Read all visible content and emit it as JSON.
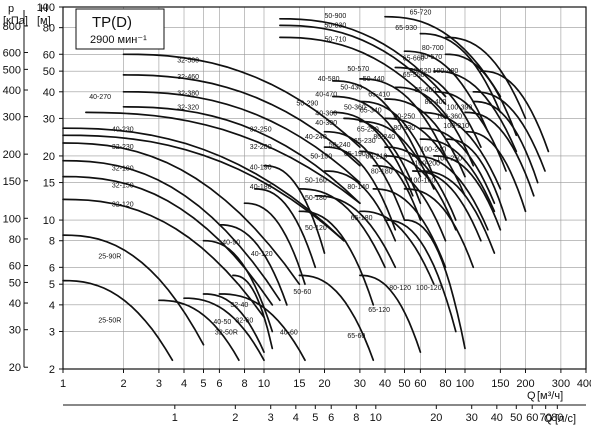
{
  "chart_data": {
    "type": "line",
    "title": "TP(D)",
    "subtitle": "2900 мин⁻¹",
    "axes": {
      "y_head": {
        "label": "H",
        "unit": "[м]",
        "scale": "log",
        "range": [
          2,
          100
        ],
        "ticks": [
          "2",
          "3",
          "4",
          "5",
          "6",
          "8",
          "10",
          "15",
          "20",
          "30",
          "40",
          "50",
          "60",
          "80",
          "100"
        ]
      },
      "y_pressure": {
        "label": "p",
        "unit": "[кПа]",
        "scale": "log",
        "range": [
          20,
          1000
        ],
        "ticks": [
          "20",
          "30",
          "40",
          "50",
          "60",
          "80",
          "100",
          "150",
          "200",
          "300",
          "400",
          "500",
          "600",
          "800"
        ]
      },
      "x_flow_m3h": {
        "label": "Q",
        "unit": "[м³/ч]",
        "scale": "log",
        "range": [
          1,
          400
        ],
        "ticks": [
          "1",
          "2",
          "3",
          "4",
          "5",
          "6",
          "8",
          "10",
          "15",
          "20",
          "30",
          "40",
          "50",
          "60",
          "80",
          "100",
          "150",
          "200",
          "300",
          "400"
        ]
      },
      "x_flow_ls": {
        "label": "Q",
        "unit": "[л/с]",
        "scale": "log",
        "ticks": [
          "1",
          "2",
          "3",
          "4",
          "5",
          "6",
          "8",
          "10",
          "20",
          "30",
          "40",
          "50",
          "60",
          "70",
          "80"
        ]
      }
    },
    "grid": true,
    "series": [
      {
        "name": "25-50R",
        "q": [
          1,
          3.5
        ],
        "h": [
          5.2,
          2.2
        ]
      },
      {
        "name": "25-90R",
        "q": [
          1,
          5
        ],
        "h": [
          8.5,
          2.6
        ]
      },
      {
        "name": "32-50R",
        "q": [
          3,
          7.5
        ],
        "h": [
          4.2,
          2.2
        ]
      },
      {
        "name": "32-120",
        "q": [
          1,
          10
        ],
        "h": [
          12.5,
          3.5
        ]
      },
      {
        "name": "32-150",
        "q": [
          1,
          11
        ],
        "h": [
          16,
          4
        ]
      },
      {
        "name": "32-180",
        "q": [
          1,
          12
        ],
        "h": [
          19,
          4.2
        ]
      },
      {
        "name": "32-230",
        "q": [
          1,
          15
        ],
        "h": [
          23,
          5
        ]
      },
      {
        "name": "40-50",
        "q": [
          4,
          10
        ],
        "h": [
          4.3,
          2.2
        ]
      },
      {
        "name": "40-90",
        "q": [
          5,
          11
        ],
        "h": [
          8,
          3
        ]
      },
      {
        "name": "40-120",
        "q": [
          6,
          13
        ],
        "h": [
          9.5,
          4
        ]
      },
      {
        "name": "40-60",
        "q": [
          6,
          16
        ],
        "h": [
          4.5,
          2.2
        ]
      },
      {
        "name": "32-40",
        "q": [
          5,
          10
        ],
        "h": [
          4.5,
          2.4
        ]
      },
      {
        "name": "32-60",
        "q": [
          7,
          11
        ],
        "h": [
          5.5,
          2.5
        ]
      },
      {
        "name": "40-180",
        "q": [
          8,
          16
        ],
        "h": [
          12,
          5
        ]
      },
      {
        "name": "40-190",
        "q": [
          9,
          18
        ],
        "h": [
          14,
          6
        ]
      },
      {
        "name": "32-200",
        "q": [
          10,
          20
        ],
        "h": [
          18,
          7
        ]
      },
      {
        "name": "32-250",
        "q": [
          1,
          25
        ],
        "h": [
          27,
          8
        ]
      },
      {
        "name": "40-230",
        "q": [
          1,
          25
        ],
        "h": [
          25,
          8
        ]
      },
      {
        "name": "40-270",
        "q": [
          1.3,
          30
        ],
        "h": [
          32,
          12
        ]
      },
      {
        "name": "32-320",
        "q": [
          2,
          30
        ],
        "h": [
          34,
          12
        ]
      },
      {
        "name": "32-380",
        "q": [
          2,
          30
        ],
        "h": [
          40,
          15
        ]
      },
      {
        "name": "32-460",
        "q": [
          2,
          30
        ],
        "h": [
          48,
          18
        ]
      },
      {
        "name": "32-580",
        "q": [
          2,
          30
        ],
        "h": [
          60,
          22
        ]
      },
      {
        "name": "50-60",
        "q": [
          15,
          35
        ],
        "h": [
          5.5,
          2.2
        ]
      },
      {
        "name": "50-120",
        "q": [
          15,
          35
        ],
        "h": [
          11,
          4
        ]
      },
      {
        "name": "50-160",
        "q": [
          15,
          40
        ],
        "h": [
          14,
          6
        ]
      },
      {
        "name": "50-180",
        "q": [
          18,
          45
        ],
        "h": [
          13,
          6
        ]
      },
      {
        "name": "50-190",
        "q": [
          20,
          45
        ],
        "h": [
          17,
          8
        ]
      },
      {
        "name": "40-240",
        "q": [
          20,
          45
        ],
        "h": [
          22,
          9
        ]
      },
      {
        "name": "40-300",
        "q": [
          20,
          50
        ],
        "h": [
          26,
          10
        ]
      },
      {
        "name": "40-360",
        "q": [
          22,
          55
        ],
        "h": [
          32,
          13
        ]
      },
      {
        "name": "40-470",
        "q": [
          22,
          60
        ],
        "h": [
          38,
          16
        ]
      },
      {
        "name": "40-580",
        "q": [
          22,
          60
        ],
        "h": [
          45,
          19
        ]
      },
      {
        "name": "50-290",
        "q": [
          25,
          60
        ],
        "h": [
          30,
          12
        ]
      },
      {
        "name": "50-240",
        "q": [
          30,
          60
        ],
        "h": [
          21,
          10
        ]
      },
      {
        "name": "50-360",
        "q": [
          30,
          70
        ],
        "h": [
          29,
          14
        ]
      },
      {
        "name": "50-430",
        "q": [
          30,
          70
        ],
        "h": [
          36,
          16
        ]
      },
      {
        "name": "50-570",
        "q": [
          30,
          80
        ],
        "h": [
          46,
          20
        ]
      },
      {
        "name": "50-710",
        "q": [
          12,
          80
        ],
        "h": [
          72,
          30
        ]
      },
      {
        "name": "50-830",
        "q": [
          12,
          80
        ],
        "h": [
          82,
          35
        ]
      },
      {
        "name": "50-900",
        "q": [
          12,
          80
        ],
        "h": [
          88,
          38
        ]
      },
      {
        "name": "65-60",
        "q": [
          30,
          60
        ],
        "h": [
          5.5,
          2.4
        ]
      },
      {
        "name": "65-120",
        "q": [
          30,
          70
        ],
        "h": [
          11,
          5
        ]
      },
      {
        "name": "65-180",
        "q": [
          35,
          80
        ],
        "h": [
          14,
          6
        ]
      },
      {
        "name": "65-190",
        "q": [
          35,
          80
        ],
        "h": [
          18,
          8
        ]
      },
      {
        "name": "65-230",
        "q": [
          40,
          90
        ],
        "h": [
          20,
          9
        ]
      },
      {
        "name": "65-250",
        "q": [
          40,
          90
        ],
        "h": [
          22,
          10
        ]
      },
      {
        "name": "65-340",
        "q": [
          40,
          100
        ],
        "h": [
          30,
          13
        ]
      },
      {
        "name": "65-410",
        "q": [
          40,
          100
        ],
        "h": [
          37,
          16
        ]
      },
      {
        "name": "65-460",
        "q": [
          45,
          110
        ],
        "h": [
          42,
          18
        ]
      },
      {
        "name": "65-550",
        "q": [
          45,
          120
        ],
        "h": [
          52,
          22
        ]
      },
      {
        "name": "65-660",
        "q": [
          50,
          130
        ],
        "h": [
          62,
          26
        ]
      },
      {
        "name": "65-720",
        "q": [
          60,
          150
        ],
        "h": [
          75,
          32
        ]
      },
      {
        "name": "65-930",
        "q": [
          40,
          150
        ],
        "h": [
          90,
          38
        ]
      },
      {
        "name": "80-140",
        "q": [
          50,
          110
        ],
        "h": [
          14,
          6
        ]
      },
      {
        "name": "80-180",
        "q": [
          55,
          120
        ],
        "h": [
          17,
          8
        ]
      },
      {
        "name": "80-210",
        "q": [
          55,
          130
        ],
        "h": [
          20,
          9
        ]
      },
      {
        "name": "80-240",
        "q": [
          60,
          140
        ],
        "h": [
          24,
          11
        ]
      },
      {
        "name": "80-250",
        "q": [
          60,
          140
        ],
        "h": [
          27,
          12
        ]
      },
      {
        "name": "80-330",
        "q": [
          60,
          150
        ],
        "h": [
          32,
          14
        ]
      },
      {
        "name": "80-400",
        "q": [
          70,
          160
        ],
        "h": [
          40,
          17
        ]
      },
      {
        "name": "80-520",
        "q": [
          70,
          180
        ],
        "h": [
          50,
          21
        ]
      },
      {
        "name": "80-570",
        "q": [
          80,
          180
        ],
        "h": [
          60,
          25
        ]
      },
      {
        "name": "80-700",
        "q": [
          80,
          200
        ],
        "h": [
          72,
          30
        ]
      },
      {
        "name": "80-120",
        "q": [
          40,
          90
        ],
        "h": [
          10,
          3
        ]
      },
      {
        "name": "100-120",
        "q": [
          50,
          100
        ],
        "h": [
          10,
          2.5
        ]
      },
      {
        "name": "100-160",
        "q": [
          60,
          140
        ],
        "h": [
          17,
          7
        ]
      },
      {
        "name": "100-200",
        "q": [
          70,
          150
        ],
        "h": [
          20,
          9
        ]
      },
      {
        "name": "100-240",
        "q": [
          80,
          160
        ],
        "h": [
          24,
          10
        ]
      },
      {
        "name": "100-250",
        "q": [
          100,
          200
        ],
        "h": [
          26,
          11
        ]
      },
      {
        "name": "100-310",
        "q": [
          100,
          220
        ],
        "h": [
          32,
          13
        ]
      },
      {
        "name": "100-360",
        "q": [
          110,
          230
        ],
        "h": [
          36,
          15
        ]
      },
      {
        "name": "100-390",
        "q": [
          110,
          250
        ],
        "h": [
          40,
          17
        ]
      },
      {
        "name": "100-480",
        "q": [
          120,
          260
        ],
        "h": [
          50,
          21
        ]
      }
    ]
  },
  "range_labels": [
    {
      "text": "25-50R",
      "q": 1.5,
      "h": 3.3
    },
    {
      "text": "25-90R",
      "q": 1.5,
      "h": 6.6
    },
    {
      "text": "32-50R",
      "q": 5.7,
      "h": 2.9
    },
    {
      "text": "40-50",
      "q": 5.6,
      "h": 3.25
    },
    {
      "text": "32-40",
      "q": 6.8,
      "h": 3.9
    },
    {
      "text": "32-60",
      "q": 7.2,
      "h": 3.3
    },
    {
      "text": "40-90",
      "q": 6.2,
      "h": 7.7
    },
    {
      "text": "40-120",
      "q": 8.6,
      "h": 6.8
    },
    {
      "text": "40-60",
      "q": 12,
      "h": 2.9
    },
    {
      "text": "50-60",
      "q": 14,
      "h": 4.5
    },
    {
      "text": "65-60",
      "q": 26,
      "h": 2.8
    },
    {
      "text": "65-120",
      "q": 33,
      "h": 3.7
    },
    {
      "text": "80-120",
      "q": 42,
      "h": 4.7
    },
    {
      "text": "100-120",
      "q": 57,
      "h": 4.7
    },
    {
      "text": "32-120",
      "q": 1.75,
      "h": 11.6
    },
    {
      "text": "32-150",
      "q": 1.75,
      "h": 14.2
    },
    {
      "text": "32-180",
      "q": 1.75,
      "h": 17.1
    },
    {
      "text": "32-230",
      "q": 1.75,
      "h": 21.5
    },
    {
      "text": "40-230",
      "q": 1.75,
      "h": 26
    },
    {
      "text": "40-270",
      "q": 1.35,
      "h": 37
    },
    {
      "text": "32-320",
      "q": 3.7,
      "h": 33
    },
    {
      "text": "32-380",
      "q": 3.7,
      "h": 38.5
    },
    {
      "text": "32-460",
      "q": 3.7,
      "h": 46
    },
    {
      "text": "32-580",
      "q": 3.7,
      "h": 55
    },
    {
      "text": "32-250",
      "q": 8.5,
      "h": 26
    },
    {
      "text": "32-200",
      "q": 8.5,
      "h": 21.5
    },
    {
      "text": "40-190",
      "q": 8.5,
      "h": 17.3
    },
    {
      "text": "40-180",
      "q": 8.5,
      "h": 14
    },
    {
      "text": "50-120",
      "q": 16,
      "h": 9
    },
    {
      "text": "50-180",
      "q": 16,
      "h": 12.4
    },
    {
      "text": "50-160",
      "q": 16,
      "h": 15
    },
    {
      "text": "50-190",
      "q": 17,
      "h": 19.5
    },
    {
      "text": "40-240",
      "q": 16,
      "h": 24
    },
    {
      "text": "40-300",
      "q": 18,
      "h": 28
    },
    {
      "text": "50-290",
      "q": 14.5,
      "h": 34.5
    },
    {
      "text": "40-360",
      "q": 18,
      "h": 31
    },
    {
      "text": "40-470",
      "q": 18,
      "h": 38
    },
    {
      "text": "40-580",
      "q": 18.5,
      "h": 45
    },
    {
      "text": "50-430",
      "q": 24,
      "h": 41
    },
    {
      "text": "50-570",
      "q": 26,
      "h": 50
    },
    {
      "text": "50-440",
      "q": 31,
      "h": 45
    },
    {
      "text": "50-360",
      "q": 25,
      "h": 33
    },
    {
      "text": "50-240",
      "q": 21,
      "h": 22
    },
    {
      "text": "65-410",
      "q": 33,
      "h": 38
    },
    {
      "text": "65-340",
      "q": 30,
      "h": 32
    },
    {
      "text": "65-250",
      "q": 29,
      "h": 26
    },
    {
      "text": "65-230",
      "q": 28,
      "h": 23
    },
    {
      "text": "65-190",
      "q": 25,
      "h": 20
    },
    {
      "text": "65-180",
      "q": 27,
      "h": 10
    },
    {
      "text": "80-140",
      "q": 26,
      "h": 14
    },
    {
      "text": "80-180",
      "q": 34,
      "h": 16.5
    },
    {
      "text": "80-210",
      "q": 32,
      "h": 19.5
    },
    {
      "text": "80-240",
      "q": 35,
      "h": 24
    },
    {
      "text": "80-250",
      "q": 44,
      "h": 30
    },
    {
      "text": "80-330",
      "q": 44,
      "h": 26.5
    },
    {
      "text": "100-160",
      "q": 53,
      "h": 15
    },
    {
      "text": "100-200",
      "q": 56,
      "h": 18
    },
    {
      "text": "100-240",
      "q": 60,
      "h": 21
    },
    {
      "text": "100-250",
      "q": 72,
      "h": 19
    },
    {
      "text": "100-310",
      "q": 78,
      "h": 27
    },
    {
      "text": "100-360",
      "q": 72,
      "h": 30
    },
    {
      "text": "100-390",
      "q": 81,
      "h": 33
    },
    {
      "text": "80-400",
      "q": 63,
      "h": 35
    },
    {
      "text": "65-460",
      "q": 56,
      "h": 40
    },
    {
      "text": "65-550",
      "q": 49,
      "h": 47
    },
    {
      "text": "80-520",
      "q": 53,
      "h": 49
    },
    {
      "text": "65-660",
      "q": 49,
      "h": 56
    },
    {
      "text": "80-570",
      "q": 60,
      "h": 57
    },
    {
      "text": "100-480",
      "q": 69,
      "h": 49
    },
    {
      "text": "80-700",
      "q": 61,
      "h": 63
    },
    {
      "text": "65-930",
      "q": 45,
      "h": 78
    },
    {
      "text": "65-720",
      "q": 53,
      "h": 92
    },
    {
      "text": "50-900",
      "q": 20,
      "h": 89
    },
    {
      "text": "50-830",
      "q": 20,
      "h": 80
    },
    {
      "text": "50-710",
      "q": 20,
      "h": 69
    }
  ]
}
